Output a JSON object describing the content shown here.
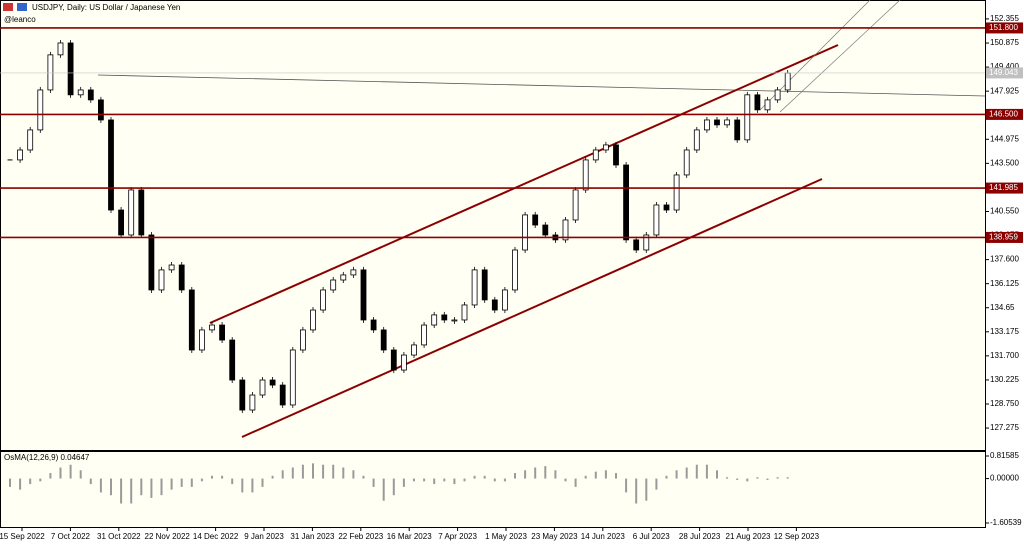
{
  "header": {
    "title": "USDJPY, Daily:  US Dollar / Japanese Yen",
    "author": "@leanco"
  },
  "chart_data": [
    {
      "type": "candlestick",
      "values": [
        143.71,
        144.32,
        145.55,
        148.0,
        150.15,
        150.88,
        147.7,
        148.0,
        147.39,
        146.16,
        140.64,
        139.11,
        141.87,
        139.11,
        135.74,
        136.97,
        137.27,
        135.74,
        132.06,
        133.29,
        133.59,
        132.67,
        130.22,
        128.38,
        129.3,
        130.22,
        129.91,
        128.69,
        132.06,
        133.29,
        134.51,
        135.74,
        136.35,
        136.66,
        136.97,
        133.9,
        133.29,
        132.06,
        130.83,
        131.75,
        132.37,
        133.59,
        134.21,
        133.9,
        133.9,
        134.82,
        136.97,
        135.13,
        134.51,
        135.74,
        138.19,
        140.34,
        139.72,
        139.11,
        138.81,
        140.03,
        141.87,
        143.71,
        144.32,
        144.63,
        143.4,
        138.81,
        138.19,
        139.11,
        140.95,
        140.64,
        142.79,
        144.32,
        145.55,
        146.16,
        145.86,
        146.16,
        144.94,
        147.7,
        146.78,
        147.39,
        148.0,
        149.04
      ],
      "xtick_labels": [
        "15 Sep 2022",
        "7 Oct 2022",
        "31 Oct 2022",
        "22 Nov 2022",
        "14 Dec 2022",
        "9 Jan 2023",
        "31 Jan 2023",
        "22 Feb 2023",
        "16 Mar 2023",
        "7 Apr 2023",
        "1 May 2023",
        "23 May 2023",
        "14 Jun 2023",
        "6 Jul 2023",
        "28 Jul 2023",
        "21 Aug 2023",
        "12 Sep 2023"
      ],
      "ylim": [
        125.93,
        152.9
      ],
      "yticks": [
        152.355,
        150.875,
        {
          "value": 149.4,
          "label": "149.400"
        },
        147.925,
        {
          "value": 146.45,
          "label": "146.450"
        },
        144.975,
        {
          "value": 143.5,
          "label": "143.500"
        },
        142.025,
        {
          "value": 140.55,
          "label": "140.550"
        },
        139.075,
        {
          "value": 137.6,
          "label": "137.600"
        },
        136.125,
        134.65,
        133.175,
        {
          "value": 131.7,
          "label": "131.700"
        },
        130.225,
        {
          "value": 128.75,
          "label": "128.750"
        },
        127.275
      ],
      "levels": [
        {
          "value": 151.8,
          "label": "151.800"
        },
        {
          "value": 146.5,
          "label": "146.500"
        },
        {
          "value": 141.985,
          "label": "141.985"
        },
        {
          "value": 138.959,
          "label": "138.959"
        }
      ],
      "last": {
        "value": 149.043,
        "label": "149.043"
      },
      "level_color": "#8b0000",
      "color": "#000000"
    },
    {
      "type": "histogram",
      "title": "OsMA(12,26,9) 0.04647",
      "values": [
        -0.3,
        -0.4,
        -0.2,
        -0.1,
        0.2,
        0.4,
        0.5,
        0.3,
        -0.2,
        -0.5,
        -0.6,
        -0.9,
        -0.9,
        -0.6,
        -0.7,
        -0.6,
        -0.4,
        -0.3,
        -0.3,
        -0.1,
        0.1,
        0.1,
        -0.2,
        -0.5,
        -0.5,
        -0.3,
        0.1,
        0.3,
        0.4,
        0.5,
        0.55,
        0.5,
        0.5,
        0.4,
        0.3,
        0.1,
        -0.3,
        -0.8,
        -0.6,
        -0.3,
        -0.1,
        -0.1,
        -0.2,
        -0.1,
        -0.2,
        -0.1,
        0.1,
        0.1,
        -0.1,
        -0.1,
        0.2,
        0.3,
        0.4,
        0.45,
        0.3,
        -0.1,
        -0.3,
        0.1,
        0.25,
        0.3,
        0.2,
        -0.5,
        -0.9,
        -0.8,
        -0.4,
        0.1,
        0.3,
        0.4,
        0.5,
        0.5,
        0.3,
        0.05,
        -0.05,
        -0.1,
        0.05,
        -0.05,
        0.05,
        0.05
      ],
      "ylim": [
        -1.60539,
        0.81585
      ],
      "yticks": [
        0.81585,
        {
          "value": 0,
          "label": "0.00000"
        },
        -1.60539
      ],
      "color": "#9a9a9a"
    }
  ]
}
